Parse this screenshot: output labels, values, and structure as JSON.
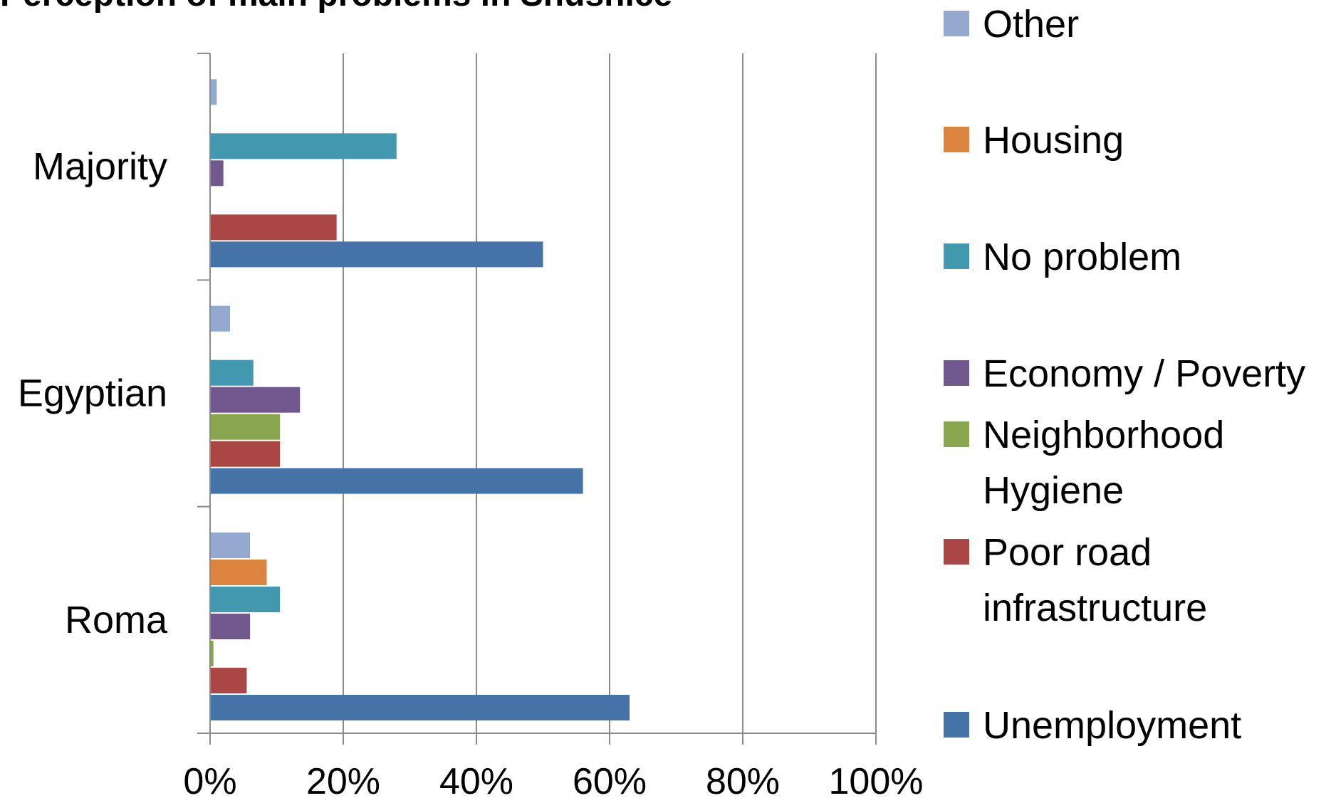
{
  "chart_data": {
    "type": "bar",
    "orientation": "horizontal",
    "title": "Perception of main problems in Shushice",
    "categories": [
      "Majority",
      "Egyptian",
      "Roma"
    ],
    "series": [
      {
        "name": "Unemployment",
        "color": "#4572A7",
        "values": [
          50,
          56,
          63
        ]
      },
      {
        "name": "Poor road infrastructure",
        "color": "#AA4643",
        "values": [
          19,
          10.5,
          5.5
        ]
      },
      {
        "name": "Neighborhood Hygiene",
        "color": "#89A54E",
        "values": [
          0,
          10.5,
          0.5
        ]
      },
      {
        "name": "Economy / Poverty",
        "color": "#71588F",
        "values": [
          2,
          13.5,
          6
        ]
      },
      {
        "name": "No problem",
        "color": "#4198AF",
        "values": [
          28,
          6.5,
          10.5
        ]
      },
      {
        "name": "Housing",
        "color": "#DB843D",
        "values": [
          0,
          0,
          8.5
        ]
      },
      {
        "name": "Other",
        "color": "#93A9CF",
        "values": [
          1,
          3,
          6
        ]
      }
    ],
    "x_ticks": [
      "0%",
      "20%",
      "40%",
      "60%",
      "80%",
      "100%"
    ],
    "xlim": [
      0,
      100
    ],
    "grid": true,
    "legend_position": "right",
    "legend_order": [
      "Other",
      "Housing",
      "No problem",
      "Economy / Poverty",
      "Neighborhood Hygiene",
      "Poor road infrastructure",
      "Unemployment"
    ]
  }
}
